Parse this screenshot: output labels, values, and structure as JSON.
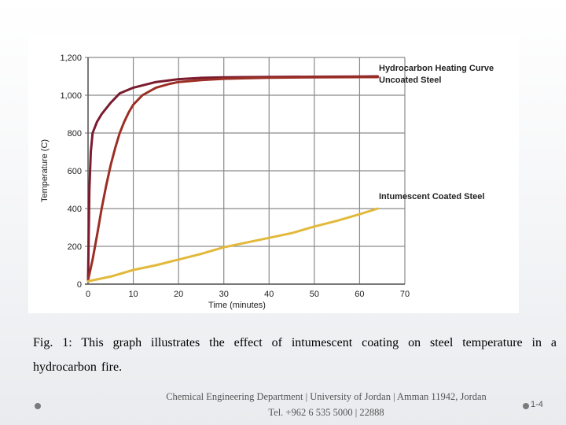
{
  "chart_data": {
    "type": "line",
    "title": "",
    "xlabel": "Time (minutes)",
    "ylabel": "Temperature (C)",
    "xlim": [
      0,
      70
    ],
    "ylim": [
      0,
      1200
    ],
    "x_ticks": [
      "0",
      "10",
      "20",
      "30",
      "40",
      "50",
      "60",
      "70"
    ],
    "y_ticks": [
      "0",
      "200",
      "400",
      "600",
      "800",
      "1,000",
      "1,200"
    ],
    "grid": true,
    "series": [
      {
        "name": "Hydrocarbon Heating Curve",
        "color": "#7a1b2e",
        "points": [
          [
            0,
            20
          ],
          [
            0.3,
            500
          ],
          [
            0.6,
            700
          ],
          [
            1,
            800
          ],
          [
            2,
            860
          ],
          [
            3,
            900
          ],
          [
            5,
            960
          ],
          [
            7,
            1010
          ],
          [
            10,
            1040
          ],
          [
            15,
            1070
          ],
          [
            20,
            1085
          ],
          [
            25,
            1092
          ],
          [
            30,
            1095
          ],
          [
            40,
            1097
          ],
          [
            50,
            1098
          ],
          [
            60,
            1099
          ],
          [
            64,
            1100
          ]
        ]
      },
      {
        "name": "Uncoated Steel",
        "color": "#9c2f25",
        "points": [
          [
            0,
            20
          ],
          [
            1,
            130
          ],
          [
            2,
            260
          ],
          [
            3,
            400
          ],
          [
            4,
            520
          ],
          [
            5,
            630
          ],
          [
            6,
            720
          ],
          [
            7,
            800
          ],
          [
            8,
            860
          ],
          [
            9,
            910
          ],
          [
            10,
            950
          ],
          [
            12,
            1000
          ],
          [
            15,
            1040
          ],
          [
            18,
            1060
          ],
          [
            20,
            1070
          ],
          [
            25,
            1080
          ],
          [
            30,
            1087
          ],
          [
            35,
            1090
          ],
          [
            40,
            1093
          ],
          [
            50,
            1095
          ],
          [
            60,
            1096
          ],
          [
            64,
            1096
          ]
        ]
      },
      {
        "name": "Intumescent Coated Steel",
        "color": "#e2b93a",
        "points": [
          [
            0,
            15
          ],
          [
            5,
            40
          ],
          [
            10,
            75
          ],
          [
            15,
            100
          ],
          [
            20,
            130
          ],
          [
            25,
            160
          ],
          [
            30,
            195
          ],
          [
            35,
            220
          ],
          [
            40,
            245
          ],
          [
            45,
            270
          ],
          [
            50,
            305
          ],
          [
            55,
            335
          ],
          [
            60,
            370
          ],
          [
            64,
            400
          ]
        ]
      }
    ]
  },
  "caption": "Fig. 1: This graph illustrates the effect of intumescent coating on steel temperature in a hydrocarbon fire.",
  "footer": {
    "line1": "Chemical Engineering Department | University of Jordan | Amman 11942, Jordan",
    "line2": "Tel. +962 6 535 5000 | 22888"
  },
  "slide_number": "1-4"
}
